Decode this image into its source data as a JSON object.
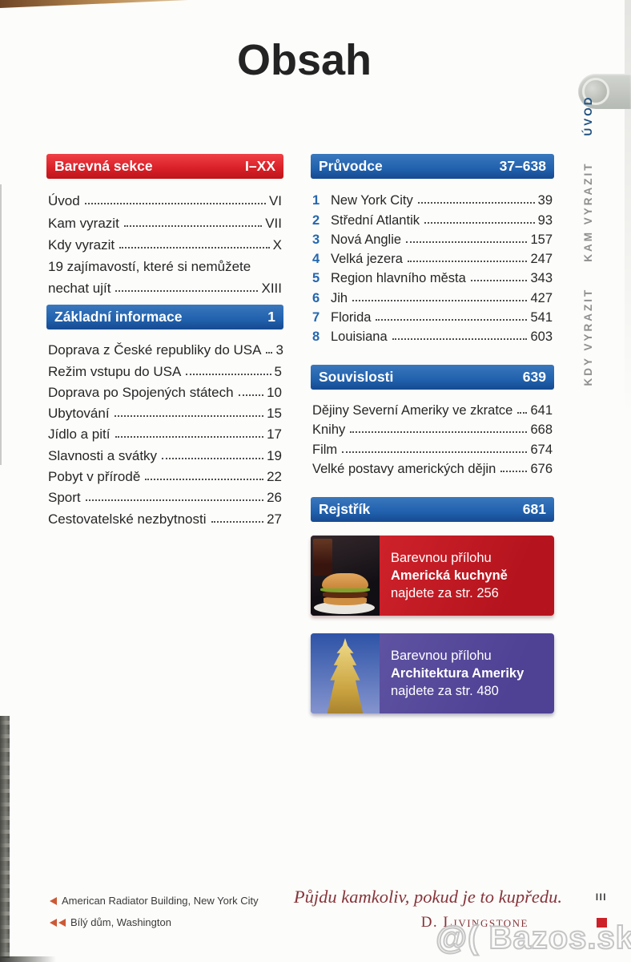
{
  "page": {
    "title": "Obsah",
    "page_number": "III"
  },
  "colors": {
    "section_red": "#da2129",
    "section_blue": "#2161ad",
    "promo_red": "#c31b24",
    "promo_purple": "#5a4b9f",
    "quote_red": "#86343a",
    "page_marker_red": "#cc2128",
    "caption_arrow": "#cc5936"
  },
  "left": [
    {
      "title": "Barevná sekce",
      "range": "I–XX",
      "items": [
        {
          "label": "Úvod",
          "page": "VI"
        },
        {
          "label": "Kam vyrazit",
          "page": "VII"
        },
        {
          "label": "Kdy vyrazit",
          "page": "X"
        },
        {
          "label": "19 zajímavostí, které si nemůžete",
          "page": ""
        },
        {
          "label": "nechat ujít",
          "page": "XIII"
        }
      ]
    },
    {
      "title": "Základní informace",
      "range": "1",
      "items": [
        {
          "label": "Doprava z České republiky do USA",
          "page": "3"
        },
        {
          "label": "Režim vstupu do USA",
          "page": "5"
        },
        {
          "label": "Doprava po Spojených státech",
          "page": "10"
        },
        {
          "label": "Ubytování",
          "page": "15"
        },
        {
          "label": "Jídlo a pití",
          "page": "17"
        },
        {
          "label": "Slavnosti a svátky",
          "page": "19"
        },
        {
          "label": "Pobyt v přírodě",
          "page": "22"
        },
        {
          "label": "Sport",
          "page": "26"
        },
        {
          "label": "Cestovatelské nezbytnosti",
          "page": "27"
        }
      ]
    }
  ],
  "right": [
    {
      "title": "Průvodce",
      "range": "37–638",
      "items": [
        {
          "num": "1",
          "label": "New York City",
          "page": "39"
        },
        {
          "num": "2",
          "label": "Střední Atlantik",
          "page": "93"
        },
        {
          "num": "3",
          "label": "Nová Anglie",
          "page": "157"
        },
        {
          "num": "4",
          "label": "Velká jezera",
          "page": "247"
        },
        {
          "num": "5",
          "label": "Region hlavního města",
          "page": "343"
        },
        {
          "num": "6",
          "label": "Jih",
          "page": "427"
        },
        {
          "num": "7",
          "label": "Florida",
          "page": "541"
        },
        {
          "num": "8",
          "label": "Louisiana",
          "page": "603"
        }
      ]
    },
    {
      "title": "Souvislosti",
      "range": "639",
      "items": [
        {
          "label": "Dějiny Severní Ameriky ve zkratce",
          "page": "641"
        },
        {
          "label": "Knihy",
          "page": "668"
        },
        {
          "label": "Film",
          "page": "674"
        },
        {
          "label": "Velké postavy amerických dějin",
          "page": "676"
        }
      ]
    },
    {
      "title": "Rejstřík",
      "range": "681"
    }
  ],
  "promos": [
    {
      "intro": "Barevnou přílohu",
      "title": "Americká kuchyně",
      "note": "najdete za str. 256"
    },
    {
      "intro": "Barevnou přílohu",
      "title": "Architektura Ameriky",
      "note": "najdete za str. 480"
    }
  ],
  "side_tabs": [
    {
      "label": "ÚVOD"
    },
    {
      "label": "KAM VYRAZIT"
    },
    {
      "label": "KDY VYRAZIT"
    }
  ],
  "footer": {
    "captions": [
      {
        "text": "American Radiator Building, New York City"
      },
      {
        "text": "Bílý dům, Washington"
      }
    ],
    "quote": "Půjdu kamkoliv, pokud je to kupředu.",
    "attribution": "D. Livingstone",
    "page_number": "III"
  },
  "watermark": {
    "text": "@( Bazos.sk"
  }
}
